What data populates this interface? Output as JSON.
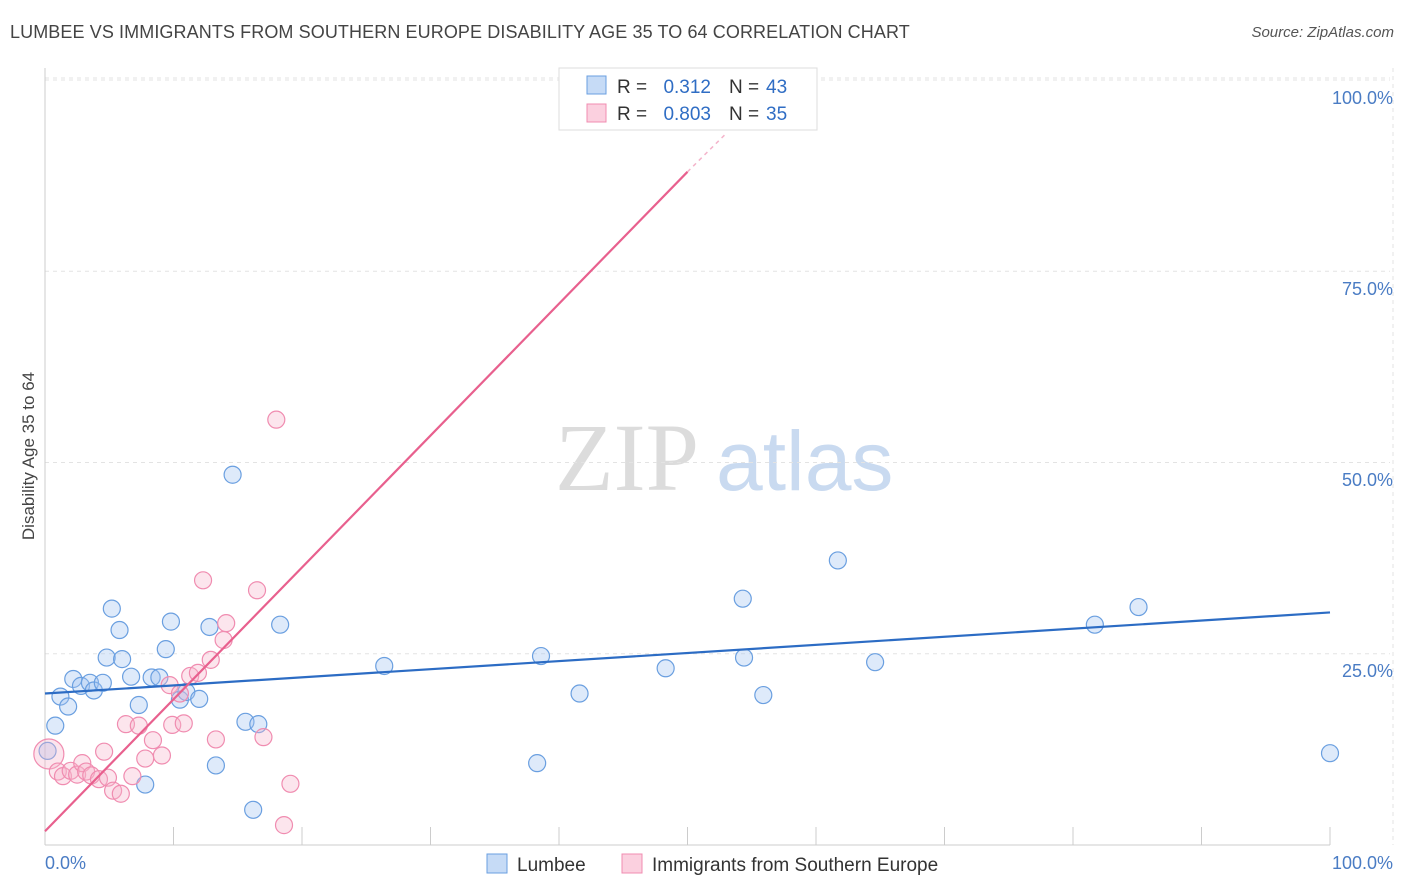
{
  "title": "LUMBEE VS IMMIGRANTS FROM SOUTHERN EUROPE DISABILITY AGE 35 TO 64 CORRELATION CHART",
  "source": "Source: ZipAtlas.com",
  "watermark": {
    "zip": "ZIP",
    "atlas": "atlas"
  },
  "legend": {
    "r_label": "R =",
    "n_label": "N =",
    "rows": [
      {
        "r": "0.312",
        "n": "43"
      },
      {
        "r": "0.803",
        "n": "35"
      }
    ]
  },
  "bottom_legend": [
    "Lumbee",
    "Immigrants from Southern Europe"
  ],
  "chart_data": {
    "type": "scatter",
    "title": "LUMBEE VS IMMIGRANTS FROM SOUTHERN EUROPE DISABILITY AGE 35 TO 64 CORRELATION CHART",
    "xlabel": "",
    "ylabel": "Disability Age 35 to 64",
    "xlim": [
      0,
      100
    ],
    "ylim": [
      0,
      100
    ],
    "x_tick_labels": [
      "0.0%",
      "100.0%"
    ],
    "y_tick_labels": [
      "100.0%",
      "75.0%",
      "50.0%",
      "25.0%"
    ],
    "y_ticks": [
      100,
      75,
      50,
      25
    ],
    "colors": {
      "lumbee": "#6a9fe0",
      "lumbee_line": "#2c6cc4",
      "southern": "#f08cb0",
      "southern_line": "#e8608e"
    },
    "series": [
      {
        "name": "Lumbee",
        "r": 0.312,
        "n": 43,
        "trend": [
          [
            0,
            19.8
          ],
          [
            100,
            30.4
          ]
        ],
        "points": [
          [
            0.2,
            12.3
          ],
          [
            0.8,
            15.6
          ],
          [
            1.2,
            19.4
          ],
          [
            1.8,
            18.1
          ],
          [
            2.2,
            21.7
          ],
          [
            2.8,
            20.8
          ],
          [
            3.5,
            21.2
          ],
          [
            3.8,
            20.2
          ],
          [
            4.5,
            21.2
          ],
          [
            4.8,
            24.5
          ],
          [
            5.2,
            30.9
          ],
          [
            5.8,
            28.1
          ],
          [
            6.0,
            24.3
          ],
          [
            6.7,
            22.0
          ],
          [
            7.3,
            18.3
          ],
          [
            7.8,
            7.9
          ],
          [
            8.3,
            21.9
          ],
          [
            8.9,
            21.9
          ],
          [
            9.4,
            25.6
          ],
          [
            9.8,
            29.2
          ],
          [
            10.5,
            19.0
          ],
          [
            11.0,
            20.0
          ],
          [
            12.0,
            19.1
          ],
          [
            12.8,
            28.5
          ],
          [
            13.3,
            10.4
          ],
          [
            14.6,
            48.4
          ],
          [
            15.6,
            16.1
          ],
          [
            16.2,
            4.6
          ],
          [
            16.6,
            15.8
          ],
          [
            18.3,
            28.8
          ],
          [
            26.4,
            23.4
          ],
          [
            38.3,
            10.7
          ],
          [
            38.6,
            24.7
          ],
          [
            41.6,
            19.8
          ],
          [
            48.3,
            23.1
          ],
          [
            54.3,
            32.2
          ],
          [
            54.4,
            24.5
          ],
          [
            55.9,
            19.6
          ],
          [
            61.7,
            37.2
          ],
          [
            64.6,
            23.9
          ],
          [
            81.7,
            28.8
          ],
          [
            85.1,
            31.1
          ],
          [
            100.0,
            12.0
          ]
        ]
      },
      {
        "name": "Immigrants from Southern Europe",
        "r": 0.803,
        "n": 35,
        "trend": [
          [
            0,
            1.8
          ],
          [
            50,
            88.0
          ]
        ],
        "trend_dashed": [
          [
            50,
            88.0
          ],
          [
            53,
            93.0
          ]
        ],
        "points": [
          [
            0.3,
            11.9
          ],
          [
            1.0,
            9.6
          ],
          [
            1.4,
            9.0
          ],
          [
            2.0,
            9.7
          ],
          [
            2.5,
            9.2
          ],
          [
            2.9,
            10.7
          ],
          [
            3.2,
            9.6
          ],
          [
            3.6,
            9.1
          ],
          [
            4.2,
            8.6
          ],
          [
            4.6,
            12.2
          ],
          [
            4.9,
            8.8
          ],
          [
            5.3,
            7.1
          ],
          [
            5.9,
            6.7
          ],
          [
            6.3,
            15.8
          ],
          [
            6.8,
            9.0
          ],
          [
            7.3,
            15.6
          ],
          [
            7.8,
            11.3
          ],
          [
            8.4,
            13.7
          ],
          [
            9.1,
            11.7
          ],
          [
            9.7,
            20.9
          ],
          [
            9.9,
            15.7
          ],
          [
            10.5,
            19.8
          ],
          [
            10.8,
            15.9
          ],
          [
            11.3,
            22.1
          ],
          [
            11.9,
            22.5
          ],
          [
            12.3,
            34.6
          ],
          [
            12.9,
            24.2
          ],
          [
            13.3,
            13.8
          ],
          [
            13.9,
            26.8
          ],
          [
            14.1,
            29.0
          ],
          [
            16.5,
            33.3
          ],
          [
            17.0,
            14.1
          ],
          [
            18.6,
            2.6
          ],
          [
            19.1,
            8.0
          ],
          [
            18.0,
            55.6
          ]
        ]
      }
    ]
  }
}
